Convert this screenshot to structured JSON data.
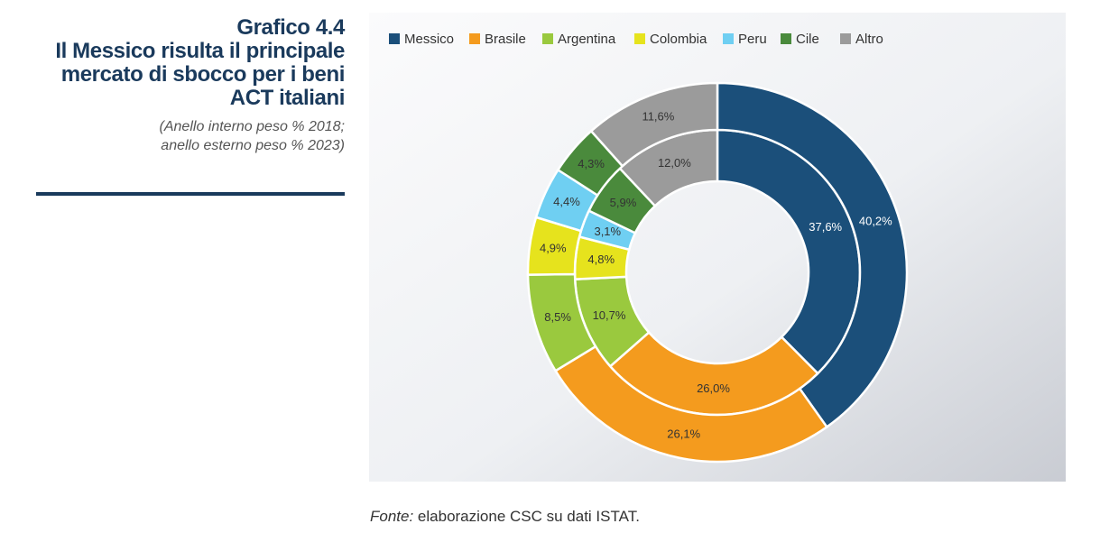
{
  "figure": {
    "number": "Grafico 4.4",
    "title": "Il Messico risulta il principale mercato di sbocco per i beni ACT italiani",
    "subtitle_line1": "(Anello interno peso % 2018;",
    "subtitle_line2": "anello esterno peso % 2023)"
  },
  "source": {
    "label": "Fonte:",
    "text": " elaborazione CSC su dati ISTAT."
  },
  "chart_data": {
    "type": "pie",
    "variant": "nested-donut",
    "categories": [
      "Messico",
      "Brasile",
      "Argentina",
      "Colombia",
      "Peru",
      "Cile",
      "Altro"
    ],
    "colors": [
      "#1b4f7a",
      "#f49b1e",
      "#9ac93e",
      "#e6e31d",
      "#6fcff2",
      "#4a8a3c",
      "#9b9b9b"
    ],
    "series": [
      {
        "ring": "inner",
        "values": [
          37.6,
          26.0,
          10.7,
          4.8,
          3.1,
          5.9,
          12.0
        ],
        "labels": [
          "37,6%",
          "26,0%",
          "10,7%",
          "4,8%",
          "3,1%",
          "5,9%",
          "12,0%"
        ]
      },
      {
        "ring": "outer",
        "values": [
          40.2,
          26.1,
          8.5,
          4.9,
          4.4,
          4.3,
          11.6
        ],
        "labels": [
          "40,2%",
          "26,1%",
          "8,5%",
          "4,9%",
          "4,4%",
          "4,3%",
          "11,6%"
        ]
      }
    ],
    "legend_position": "top"
  }
}
